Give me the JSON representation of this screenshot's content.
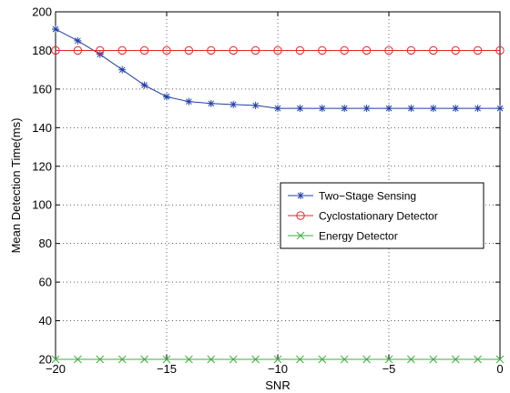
{
  "chart_data": {
    "type": "line",
    "title": "",
    "xlabel": "SNR",
    "ylabel": "Mean Detection Time(ms)",
    "xlim": [
      -20,
      0
    ],
    "ylim": [
      20,
      200
    ],
    "xticks": [
      -20,
      -15,
      -10,
      -5,
      0
    ],
    "yticks": [
      20,
      40,
      60,
      80,
      100,
      120,
      140,
      160,
      180,
      200
    ],
    "grid": true,
    "legend_position": "center-right",
    "x": [
      -20,
      -19,
      -18,
      -17,
      -16,
      -15,
      -14,
      -13,
      -12,
      -11,
      -10,
      -9,
      -8,
      -7,
      -6,
      -5,
      -4,
      -3,
      -2,
      -1,
      0
    ],
    "series": [
      {
        "name": "Two−Stage Sensing",
        "color": "#1f3fa8",
        "marker": "asterisk",
        "values": [
          191,
          185,
          178,
          170,
          162,
          156,
          153.5,
          152.5,
          152,
          151.5,
          150,
          150,
          150,
          150,
          150,
          150,
          150,
          150,
          150,
          150,
          150
        ]
      },
      {
        "name": "Cyclostationary Detector",
        "color": "#e8262b",
        "marker": "circle",
        "values": [
          180,
          180,
          180,
          180,
          180,
          180,
          180,
          180,
          180,
          180,
          180,
          180,
          180,
          180,
          180,
          180,
          180,
          180,
          180,
          180,
          180
        ]
      },
      {
        "name": "Energy Detector",
        "color": "#3fae3f",
        "marker": "x",
        "values": [
          20,
          20,
          20,
          20,
          20,
          20,
          20,
          20,
          20,
          20,
          20,
          20,
          20,
          20,
          20,
          20,
          20,
          20,
          20,
          20,
          20
        ]
      }
    ]
  }
}
